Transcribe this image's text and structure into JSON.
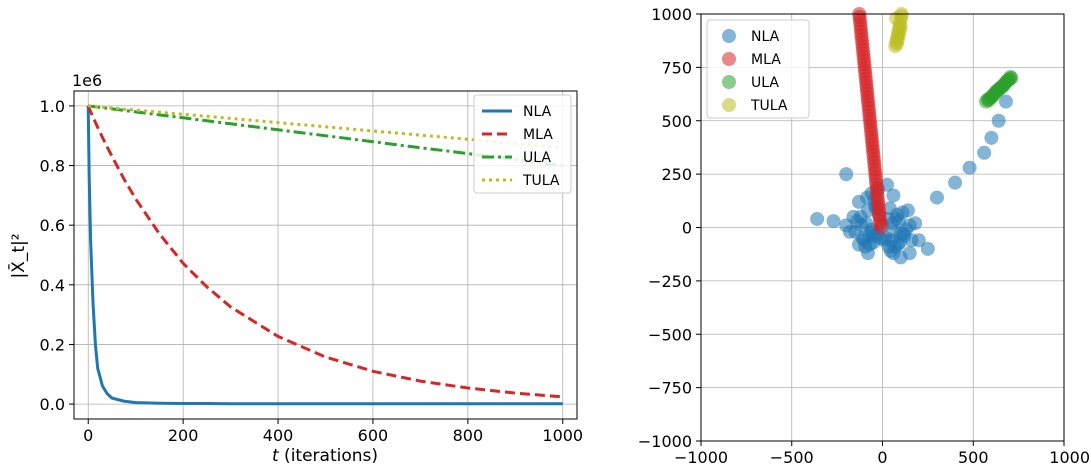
{
  "chart_data": [
    {
      "type": "line",
      "xlabel_prefix": "t",
      "xlabel_suffix": " (iterations)",
      "ylabel": "|X̄_t|²",
      "y_offset_label": "1e6",
      "xlim": [
        -30,
        1030
      ],
      "ylim": [
        -0.05,
        1.05
      ],
      "xticks": [
        0,
        200,
        400,
        600,
        800,
        1000
      ],
      "yticks": [
        0.0,
        0.2,
        0.4,
        0.6,
        0.8,
        1.0
      ],
      "xtick_labels": [
        "0",
        "200",
        "400",
        "600",
        "800",
        "1000"
      ],
      "ytick_labels": [
        "0.0",
        "0.2",
        "0.4",
        "0.6",
        "0.8",
        "1.0"
      ],
      "grid": true,
      "legend_position": "top-right",
      "x": [
        0,
        2,
        5,
        10,
        15,
        20,
        30,
        40,
        50,
        75,
        100,
        150,
        200,
        250,
        300,
        400,
        500,
        600,
        700,
        800,
        900,
        1000
      ],
      "series": [
        {
          "name": "NLA",
          "color": "#1f77b4",
          "style": "solid",
          "values": [
            1.0,
            0.76,
            0.55,
            0.34,
            0.2,
            0.12,
            0.06,
            0.035,
            0.02,
            0.01,
            0.005,
            0.003,
            0.002,
            0.002,
            0.001,
            0.001,
            0.001,
            0.001,
            0.001,
            0.001,
            0.001,
            0.001
          ]
        },
        {
          "name": "MLA",
          "color": "#d62728",
          "style": "dashed",
          "values": [
            1.0,
            0.992,
            0.981,
            0.963,
            0.945,
            0.928,
            0.894,
            0.862,
            0.831,
            0.756,
            0.688,
            0.571,
            0.472,
            0.393,
            0.326,
            0.227,
            0.158,
            0.11,
            0.077,
            0.054,
            0.037,
            0.024
          ]
        },
        {
          "name": "ULA",
          "color": "#2ca02c",
          "style": "dashdot",
          "values": [
            1.0,
            1.0,
            0.999,
            0.998,
            0.997,
            0.996,
            0.994,
            0.992,
            0.99,
            0.985,
            0.98,
            0.97,
            0.96,
            0.95,
            0.94,
            0.92,
            0.9,
            0.88,
            0.86,
            0.84,
            0.82,
            0.8
          ]
        },
        {
          "name": "TULA",
          "color": "#bcbd22",
          "style": "dotted",
          "values": [
            1.0,
            1.0,
            0.999,
            0.999,
            0.998,
            0.997,
            0.996,
            0.994,
            0.993,
            0.989,
            0.986,
            0.979,
            0.972,
            0.965,
            0.958,
            0.944,
            0.93,
            0.916,
            0.902,
            0.888,
            0.874,
            0.86
          ]
        }
      ]
    },
    {
      "type": "scatter",
      "xlim": [
        -1000,
        1000
      ],
      "ylim": [
        -1000,
        1000
      ],
      "xticks": [
        -1000,
        -500,
        0,
        500,
        1000
      ],
      "yticks": [
        -1000,
        -750,
        -500,
        -250,
        0,
        250,
        500,
        750,
        1000
      ],
      "xtick_labels": [
        "−1000",
        "−500",
        "0",
        "500",
        "1000"
      ],
      "ytick_labels": [
        "−1000",
        "−750",
        "−500",
        "−250",
        "0",
        "250",
        "500",
        "750",
        "1000"
      ],
      "grid": true,
      "legend_position": "top-left",
      "series": [
        {
          "name": "NLA",
          "color": "#1f77b4",
          "x": [
            -120,
            -90,
            -60,
            -30,
            0,
            30,
            60,
            90,
            120,
            -150,
            -100,
            -50,
            50,
            100,
            150,
            -80,
            -40,
            40,
            80,
            -110,
            -70,
            -20,
            20,
            70,
            110,
            -130,
            130,
            -60,
            60,
            -95,
            95,
            -45,
            45,
            -10,
            10,
            -140,
            140,
            -75,
            75,
            -25,
            25,
            -115,
            115,
            -55,
            55,
            -85,
            85,
            -35,
            35,
            -160,
            -180,
            160,
            -200,
            180,
            -360,
            -270,
            -200,
            -130,
            -80,
            -50,
            60,
            100,
            150,
            200,
            250,
            300,
            400,
            480,
            560,
            600,
            640,
            680
          ],
          "y": [
            50,
            20,
            -10,
            -30,
            10,
            40,
            -20,
            30,
            -40,
            -20,
            -60,
            -70,
            -60,
            -30,
            10,
            80,
            100,
            90,
            60,
            -50,
            -80,
            60,
            -50,
            -90,
            70,
            120,
            -10,
            160,
            150,
            -90,
            -70,
            130,
            -110,
            -50,
            -60,
            30,
            80,
            -40,
            40,
            180,
            200,
            10,
            -30,
            -20,
            20,
            140,
            -80,
            90,
            -90,
            50,
            -20,
            -60,
            10,
            20,
            40,
            30,
            250,
            -80,
            -120,
            -40,
            -120,
            -140,
            -120,
            -60,
            -100,
            140,
            210,
            280,
            350,
            420,
            500,
            590
          ],
          "cluster": true
        },
        {
          "name": "MLA",
          "color": "#d62728",
          "x": [
            -10,
            -12,
            -14,
            -16,
            -18,
            -20,
            -22,
            -24,
            -26,
            -28,
            -30,
            -32,
            -34,
            -36,
            -38,
            -40,
            -42,
            -44,
            -46,
            -48,
            -50,
            -52,
            -54,
            -56,
            -58,
            -60,
            -62,
            -64,
            -66,
            -68,
            -70,
            -72,
            -74,
            -76,
            -78,
            -80,
            -82,
            -84,
            -86,
            -88,
            -90,
            -92,
            -94,
            -96,
            -98,
            -100,
            -102,
            -104,
            -106,
            -108,
            -110,
            -112,
            -114,
            -116,
            -118,
            -120,
            -122,
            -124,
            -126,
            -128
          ],
          "y": [
            0,
            17,
            34,
            51,
            68,
            85,
            102,
            119,
            136,
            153,
            170,
            187,
            204,
            221,
            238,
            255,
            272,
            289,
            306,
            323,
            340,
            357,
            374,
            391,
            408,
            425,
            442,
            459,
            476,
            493,
            510,
            527,
            544,
            561,
            578,
            595,
            612,
            629,
            646,
            663,
            680,
            697,
            714,
            731,
            748,
            765,
            782,
            799,
            816,
            833,
            850,
            867,
            884,
            901,
            918,
            935,
            952,
            969,
            986,
            1000
          ]
        },
        {
          "name": "ULA",
          "color": "#2ca02c",
          "x": [
            570,
            580,
            590,
            600,
            610,
            620,
            630,
            640,
            650,
            660,
            670,
            680,
            690,
            700,
            710,
            585,
            605,
            625,
            645,
            665,
            685,
            705
          ],
          "y": [
            590,
            600,
            605,
            610,
            620,
            630,
            640,
            645,
            655,
            660,
            670,
            680,
            690,
            695,
            700,
            595,
            615,
            635,
            650,
            665,
            685,
            705
          ]
        },
        {
          "name": "TULA",
          "color": "#bcbd22",
          "x": [
            70,
            75,
            80,
            85,
            90,
            95,
            100,
            105,
            80,
            90,
            100,
            85,
            95,
            75,
            105
          ],
          "y": [
            850,
            870,
            890,
            910,
            930,
            950,
            970,
            990,
            860,
            900,
            940,
            880,
            920,
            980,
            1000
          ]
        }
      ]
    }
  ]
}
